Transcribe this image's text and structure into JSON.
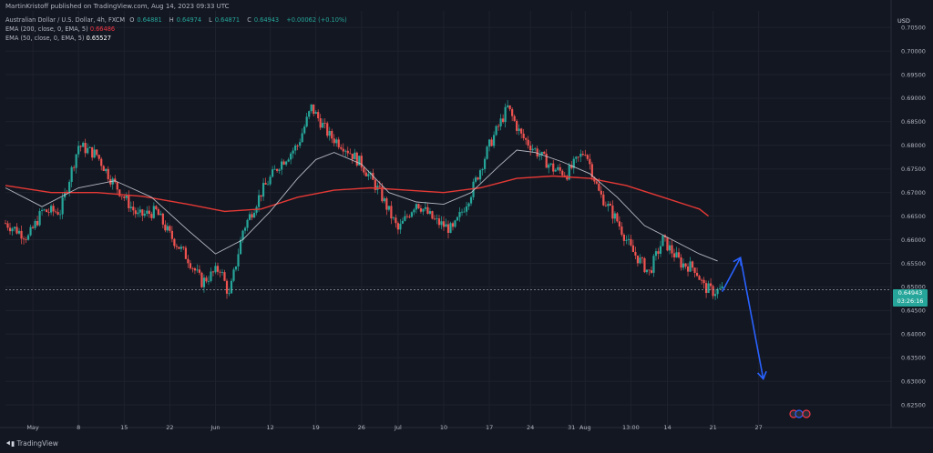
{
  "header": {
    "published": "MartinKristoff published on TradingView.com, Aug 14, 2023 09:33 UTC"
  },
  "legend": {
    "symbol": "Australian Dollar / U.S. Dollar, 4h, FXCM",
    "open_label": "O",
    "open": "0.64881",
    "high_label": "H",
    "high": "0.64974",
    "low_label": "L",
    "low": "0.64871",
    "close_label": "C",
    "close": "0.64943",
    "change": "+0.00062 (+0.10%)",
    "ema200_label": "EMA (200, close, 0, EMA, 5)",
    "ema200_value": "0.66486",
    "ema50_label": "EMA (50, close, 0, EMA, 5)",
    "ema50_value": "0.65527"
  },
  "currency": "USD",
  "price_tag": {
    "price": "0.64943",
    "countdown": "03:26:16"
  },
  "brand": "TradingView",
  "colors": {
    "background": "#131722",
    "up": "#26a69a",
    "down": "#ef5350",
    "ema200": "#e53935",
    "ema50": "#d1d4dc",
    "arrow": "#2962ff"
  },
  "chart_data": {
    "type": "candlestick",
    "timeframe": "4h",
    "ylim": [
      0.6225,
      0.7085
    ],
    "yticks": [
      0.705,
      0.7,
      0.695,
      0.69,
      0.685,
      0.68,
      0.675,
      0.67,
      0.665,
      0.66,
      0.655,
      0.65,
      0.645,
      0.64,
      0.635,
      0.63,
      0.625
    ],
    "yticks_fmt": [
      "0.70500",
      "0.70000",
      "0.69500",
      "0.69000",
      "0.68500",
      "0.68000",
      "0.67500",
      "0.67000",
      "0.66500",
      "0.66000",
      "0.65500",
      "0.65000",
      "0.64500",
      "0.64000",
      "0.63500",
      "0.63000",
      "0.62500"
    ],
    "xlim": [
      0,
      194
    ],
    "xticks": [
      {
        "x": 6,
        "label": "May"
      },
      {
        "x": 16,
        "label": "8"
      },
      {
        "x": 26,
        "label": "15"
      },
      {
        "x": 36,
        "label": "22"
      },
      {
        "x": 46,
        "label": "Jun"
      },
      {
        "x": 58,
        "label": "12"
      },
      {
        "x": 68,
        "label": "19"
      },
      {
        "x": 78,
        "label": "26"
      },
      {
        "x": 86,
        "label": "Jul"
      },
      {
        "x": 96,
        "label": "10"
      },
      {
        "x": 106,
        "label": "17"
      },
      {
        "x": 115,
        "label": "24"
      },
      {
        "x": 124,
        "label": "31"
      },
      {
        "x": 127,
        "label": "Aug"
      },
      {
        "x": 137,
        "label": "13:00"
      },
      {
        "x": 145,
        "label": "14"
      },
      {
        "x": 155,
        "label": "21"
      },
      {
        "x": 165,
        "label": "27"
      }
    ],
    "path_points": [
      [
        0,
        0.6635
      ],
      [
        5,
        0.6605
      ],
      [
        8,
        0.666
      ],
      [
        12,
        0.666
      ],
      [
        16,
        0.68
      ],
      [
        20,
        0.678
      ],
      [
        23,
        0.673
      ],
      [
        26,
        0.669
      ],
      [
        29,
        0.665
      ],
      [
        33,
        0.666
      ],
      [
        36,
        0.661
      ],
      [
        40,
        0.656
      ],
      [
        43,
        0.651
      ],
      [
        47,
        0.654
      ],
      [
        49,
        0.648
      ],
      [
        52,
        0.662
      ],
      [
        56,
        0.67
      ],
      [
        60,
        0.676
      ],
      [
        64,
        0.68
      ],
      [
        67,
        0.688
      ],
      [
        71,
        0.682
      ],
      [
        74,
        0.68
      ],
      [
        78,
        0.676
      ],
      [
        82,
        0.67
      ],
      [
        86,
        0.662
      ],
      [
        90,
        0.668
      ],
      [
        94,
        0.664
      ],
      [
        98,
        0.662
      ],
      [
        102,
        0.67
      ],
      [
        106,
        0.68
      ],
      [
        110,
        0.688
      ],
      [
        113,
        0.682
      ],
      [
        116,
        0.679
      ],
      [
        120,
        0.675
      ],
      [
        123,
        0.674
      ],
      [
        127,
        0.679
      ],
      [
        130,
        0.67
      ],
      [
        134,
        0.664
      ],
      [
        137,
        0.658
      ],
      [
        141,
        0.653
      ],
      [
        144,
        0.66
      ],
      [
        148,
        0.655
      ],
      [
        151,
        0.654
      ],
      [
        153,
        0.65
      ],
      [
        155,
        0.649
      ],
      [
        157,
        0.6494
      ]
    ],
    "ema200": [
      [
        0,
        0.6715
      ],
      [
        10,
        0.67
      ],
      [
        20,
        0.67
      ],
      [
        30,
        0.6692
      ],
      [
        40,
        0.6675
      ],
      [
        48,
        0.666
      ],
      [
        56,
        0.6665
      ],
      [
        64,
        0.669
      ],
      [
        72,
        0.6705
      ],
      [
        80,
        0.671
      ],
      [
        88,
        0.6705
      ],
      [
        96,
        0.67
      ],
      [
        104,
        0.671
      ],
      [
        112,
        0.673
      ],
      [
        120,
        0.6735
      ],
      [
        128,
        0.673
      ],
      [
        136,
        0.6715
      ],
      [
        144,
        0.669
      ],
      [
        152,
        0.6665
      ],
      [
        154,
        0.665
      ]
    ],
    "ema50": [
      [
        0,
        0.671
      ],
      [
        8,
        0.667
      ],
      [
        16,
        0.671
      ],
      [
        24,
        0.6725
      ],
      [
        32,
        0.669
      ],
      [
        40,
        0.662
      ],
      [
        46,
        0.657
      ],
      [
        52,
        0.66
      ],
      [
        58,
        0.666
      ],
      [
        64,
        0.673
      ],
      [
        68,
        0.677
      ],
      [
        72,
        0.6785
      ],
      [
        78,
        0.676
      ],
      [
        84,
        0.67
      ],
      [
        90,
        0.668
      ],
      [
        96,
        0.6675
      ],
      [
        102,
        0.67
      ],
      [
        108,
        0.6755
      ],
      [
        112,
        0.679
      ],
      [
        116,
        0.6785
      ],
      [
        122,
        0.6765
      ],
      [
        128,
        0.674
      ],
      [
        134,
        0.669
      ],
      [
        140,
        0.663
      ],
      [
        146,
        0.66
      ],
      [
        152,
        0.657
      ],
      [
        156,
        0.6555
      ]
    ],
    "last_price": 0.64943,
    "projection": {
      "up": {
        "from": [
          157,
          0.649
        ],
        "to": [
          161,
          0.6562
        ]
      },
      "down": {
        "from": [
          161,
          0.6562
        ],
        "to": [
          166,
          0.6305
        ]
      }
    }
  }
}
